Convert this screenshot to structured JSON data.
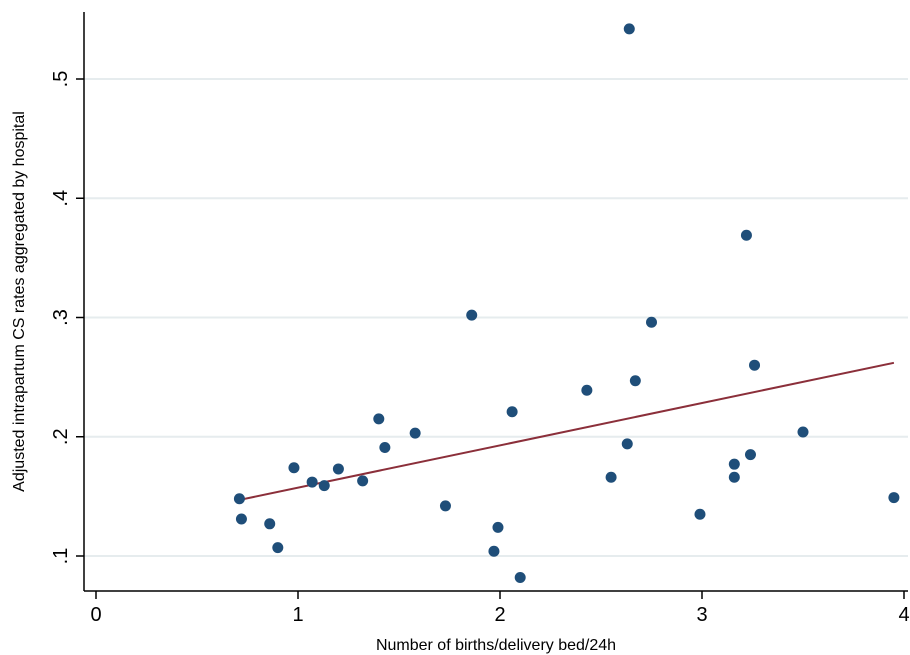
{
  "chart_data": {
    "type": "scatter",
    "title": "",
    "xlabel": "Number of births/delivery bed/24h",
    "ylabel": "Adjusted intrapartum CS rates aggregated by hospital",
    "xlim": [
      0,
      4
    ],
    "ylim": [
      0.07,
      0.55
    ],
    "x_ticks": [
      0,
      1,
      2,
      3,
      4
    ],
    "x_tick_labels": [
      "0",
      "1",
      "2",
      "3",
      "4"
    ],
    "y_ticks": [
      0.1,
      0.2,
      0.3,
      0.4,
      0.5
    ],
    "y_tick_labels": [
      ".1",
      ".2",
      ".3",
      ".4",
      ".5"
    ],
    "grid": "horizontal",
    "legend": "none",
    "colors": {
      "points": "#1f4e79",
      "fit_line": "#8b2f3a",
      "grid": "#e6ecee"
    },
    "series": [
      {
        "type": "scatter",
        "points": [
          {
            "x": 0.71,
            "y": 0.148
          },
          {
            "x": 0.72,
            "y": 0.131
          },
          {
            "x": 0.86,
            "y": 0.127
          },
          {
            "x": 0.9,
            "y": 0.107
          },
          {
            "x": 0.98,
            "y": 0.174
          },
          {
            "x": 1.07,
            "y": 0.162
          },
          {
            "x": 1.13,
            "y": 0.159
          },
          {
            "x": 1.2,
            "y": 0.173
          },
          {
            "x": 1.32,
            "y": 0.163
          },
          {
            "x": 1.4,
            "y": 0.215
          },
          {
            "x": 1.43,
            "y": 0.191
          },
          {
            "x": 1.58,
            "y": 0.203
          },
          {
            "x": 1.73,
            "y": 0.142
          },
          {
            "x": 1.86,
            "y": 0.302
          },
          {
            "x": 1.97,
            "y": 0.104
          },
          {
            "x": 1.99,
            "y": 0.124
          },
          {
            "x": 2.06,
            "y": 0.221
          },
          {
            "x": 2.1,
            "y": 0.082
          },
          {
            "x": 2.43,
            "y": 0.239
          },
          {
            "x": 2.55,
            "y": 0.166
          },
          {
            "x": 2.63,
            "y": 0.194
          },
          {
            "x": 2.64,
            "y": 0.542
          },
          {
            "x": 2.67,
            "y": 0.247
          },
          {
            "x": 2.75,
            "y": 0.296
          },
          {
            "x": 2.99,
            "y": 0.135
          },
          {
            "x": 3.16,
            "y": 0.177
          },
          {
            "x": 3.16,
            "y": 0.166
          },
          {
            "x": 3.22,
            "y": 0.369
          },
          {
            "x": 3.24,
            "y": 0.185
          },
          {
            "x": 3.26,
            "y": 0.26
          },
          {
            "x": 3.5,
            "y": 0.204
          },
          {
            "x": 3.95,
            "y": 0.149
          }
        ]
      },
      {
        "type": "line",
        "points": [
          {
            "x": 0.71,
            "y": 0.147
          },
          {
            "x": 3.95,
            "y": 0.262
          }
        ]
      }
    ]
  }
}
